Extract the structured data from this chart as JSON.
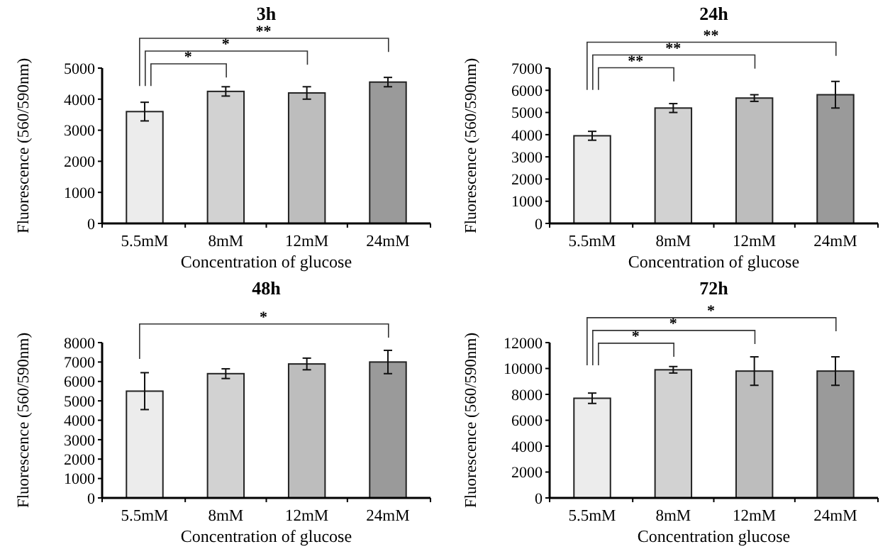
{
  "chart_data": [
    {
      "type": "bar",
      "title": "3h",
      "xlabel": "Concentration of glucose",
      "ylabel": "Fluorescence (560/590nm)",
      "categories": [
        "5.5mM",
        "8mM",
        "12mM",
        "24mM"
      ],
      "values": [
        3600,
        4250,
        4200,
        4550
      ],
      "errors": [
        300,
        150,
        200,
        150
      ],
      "colors": [
        "#ececec",
        "#d2d2d2",
        "#bdbdbd",
        "#9a9a9a"
      ],
      "ylim": [
        0,
        5000
      ],
      "yticks": [
        0,
        1000,
        2000,
        3000,
        4000,
        5000
      ],
      "grid": false,
      "annotations": [
        "*",
        "*",
        "**"
      ]
    },
    {
      "type": "bar",
      "title": "24h",
      "xlabel": "Concentration of glucose",
      "ylabel": "Fluorescence (560/590nm)",
      "categories": [
        "5.5mM",
        "8mM",
        "12mM",
        "24mM"
      ],
      "values": [
        3950,
        5200,
        5650,
        5800
      ],
      "errors": [
        200,
        200,
        150,
        600
      ],
      "colors": [
        "#ececec",
        "#d2d2d2",
        "#bdbdbd",
        "#9a9a9a"
      ],
      "ylim": [
        0,
        7000
      ],
      "yticks": [
        0,
        1000,
        2000,
        3000,
        4000,
        5000,
        6000,
        7000
      ],
      "grid": false,
      "annotations": [
        "**",
        "**",
        "**"
      ]
    },
    {
      "type": "bar",
      "title": "48h",
      "xlabel": "Concentration of glucose",
      "ylabel": "Fluorescence (560/590nm)",
      "categories": [
        "5.5mM",
        "8mM",
        "12mM",
        "24mM"
      ],
      "values": [
        5500,
        6400,
        6900,
        7000
      ],
      "errors": [
        950,
        250,
        300,
        600
      ],
      "colors": [
        "#ececec",
        "#d2d2d2",
        "#bdbdbd",
        "#9a9a9a"
      ],
      "ylim": [
        0,
        8000
      ],
      "yticks": [
        0,
        1000,
        2000,
        3000,
        4000,
        5000,
        6000,
        7000,
        8000
      ],
      "grid": false,
      "annotations": [
        "*"
      ]
    },
    {
      "type": "bar",
      "title": "72h",
      "xlabel": "Concentration glucose",
      "ylabel": "Fluorescence (560/590nm)",
      "categories": [
        "5.5mM",
        "8mM",
        "12mM",
        "24mM"
      ],
      "values": [
        7700,
        9900,
        9800,
        9800
      ],
      "errors": [
        400,
        250,
        1100,
        1100
      ],
      "colors": [
        "#ececec",
        "#d2d2d2",
        "#bdbdbd",
        "#9a9a9a"
      ],
      "ylim": [
        0,
        12000
      ],
      "yticks": [
        0,
        2000,
        4000,
        6000,
        8000,
        10000,
        12000
      ],
      "grid": false,
      "annotations": [
        "*",
        "*",
        "*"
      ]
    }
  ]
}
